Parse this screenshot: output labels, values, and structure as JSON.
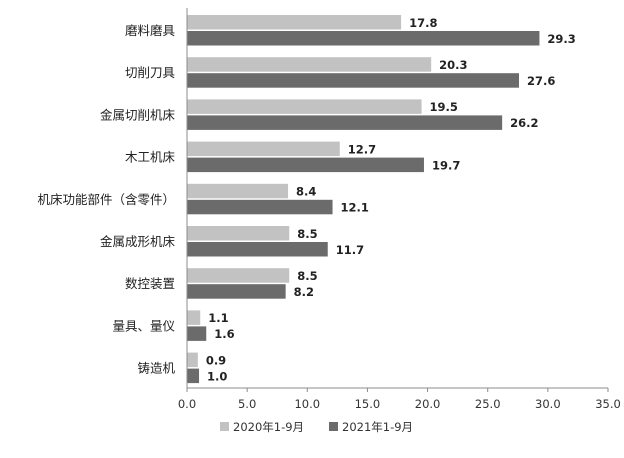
{
  "chart_data": {
    "type": "bar",
    "orientation": "horizontal",
    "categories": [
      "磨料磨具",
      "切削刀具",
      "金属切削机床",
      "木工机床",
      "机床功能部件（含零件）",
      "金属成形机床",
      "数控装置",
      "量具、量仪",
      "铸造机"
    ],
    "series": [
      {
        "name": "2020年1-9月",
        "color": "#c2c2c2",
        "values": [
          17.8,
          20.3,
          19.5,
          12.7,
          8.4,
          8.5,
          8.5,
          1.1,
          0.9
        ]
      },
      {
        "name": "2021年1-9月",
        "color": "#6b6b6b",
        "values": [
          29.3,
          27.6,
          26.2,
          19.7,
          12.1,
          11.7,
          8.2,
          1.6,
          1.0
        ]
      }
    ],
    "xlim": [
      0,
      35
    ],
    "xticks": [
      0,
      5,
      10,
      15,
      20,
      25,
      30,
      35
    ],
    "tick_labels": [
      "0.0",
      "5.0",
      "10.0",
      "15.0",
      "20.0",
      "25.0",
      "30.0",
      "35.0"
    ],
    "data_labels": [
      [
        "17.8",
        "20.3",
        "19.5",
        "12.7",
        "8.4",
        "8.5",
        "8.5",
        "1.1",
        "0.9"
      ],
      [
        "29.3",
        "27.6",
        "26.2",
        "19.7",
        "12.1",
        "11.7",
        "8.2",
        "1.6",
        "1.0"
      ]
    ],
    "legend_position": "bottom",
    "grid": false,
    "title": "",
    "xlabel": "",
    "ylabel": ""
  }
}
